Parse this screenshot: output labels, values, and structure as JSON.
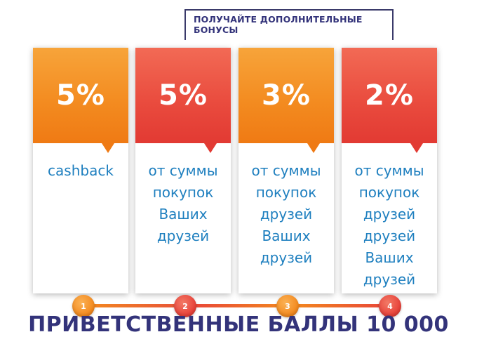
{
  "header": {
    "bonus_label_line1": "ПОЛУЧАЙТЕ ДОПОЛНИТЕЛЬНЫЕ",
    "bonus_label_line2": "БОНУСЫ"
  },
  "colors": {
    "orange": "#f5871f",
    "red": "#e8423a",
    "text_blue": "#1e7fbf",
    "navy": "#33337a"
  },
  "cards": [
    {
      "percent": "5%",
      "lines": [
        "cashback"
      ],
      "color": "orange"
    },
    {
      "percent": "5%",
      "lines": [
        "от суммы",
        "покупок",
        "Ваших",
        "друзей"
      ],
      "color": "red"
    },
    {
      "percent": "3%",
      "lines": [
        "от суммы",
        "покупок",
        "друзей",
        "Ваших",
        "друзей"
      ],
      "color": "orange"
    },
    {
      "percent": "2%",
      "lines": [
        "от суммы",
        "покупок",
        "друзей",
        "друзей",
        "Ваших",
        "друзей"
      ],
      "color": "red"
    }
  ],
  "steps": [
    "1",
    "2",
    "3",
    "4"
  ],
  "footer": "ПРИВЕТСТВЕННЫЕ БАЛЛЫ 10 000"
}
